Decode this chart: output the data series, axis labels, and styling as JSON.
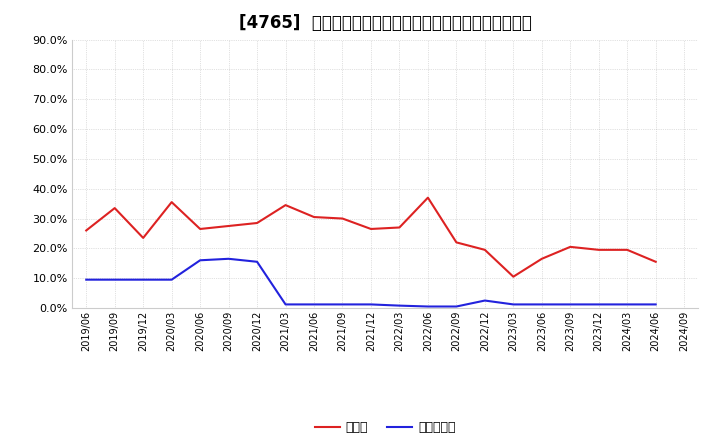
{
  "title": "[4765]  現預金、有利子負債の総資産に対する比率の推移",
  "x_labels": [
    "2019/06",
    "2019/09",
    "2019/12",
    "2020/03",
    "2020/06",
    "2020/09",
    "2020/12",
    "2021/03",
    "2021/06",
    "2021/09",
    "2021/12",
    "2022/03",
    "2022/06",
    "2022/09",
    "2022/12",
    "2023/03",
    "2023/06",
    "2023/09",
    "2023/12",
    "2024/03",
    "2024/06",
    "2024/09"
  ],
  "cash": [
    0.26,
    0.335,
    0.235,
    0.355,
    0.265,
    0.275,
    0.285,
    0.345,
    0.305,
    0.3,
    0.265,
    0.27,
    0.37,
    0.22,
    0.195,
    0.105,
    0.165,
    0.205,
    0.195,
    0.195,
    0.155,
    null
  ],
  "debt": [
    0.095,
    0.095,
    0.095,
    0.095,
    0.16,
    0.165,
    0.155,
    0.012,
    0.012,
    0.012,
    0.012,
    0.008,
    0.005,
    0.005,
    0.025,
    0.012,
    0.012,
    0.012,
    0.012,
    0.012,
    0.012,
    null
  ],
  "cash_color": "#dd2222",
  "debt_color": "#2222dd",
  "ylim": [
    0.0,
    0.9
  ],
  "yticks": [
    0.0,
    0.1,
    0.2,
    0.3,
    0.4,
    0.5,
    0.6,
    0.7,
    0.8,
    0.9
  ],
  "legend_cash": "現預金",
  "legend_debt": "有利子負債",
  "bg_color": "#ffffff",
  "grid_color": "#aaaaaa",
  "title_fontsize": 12
}
